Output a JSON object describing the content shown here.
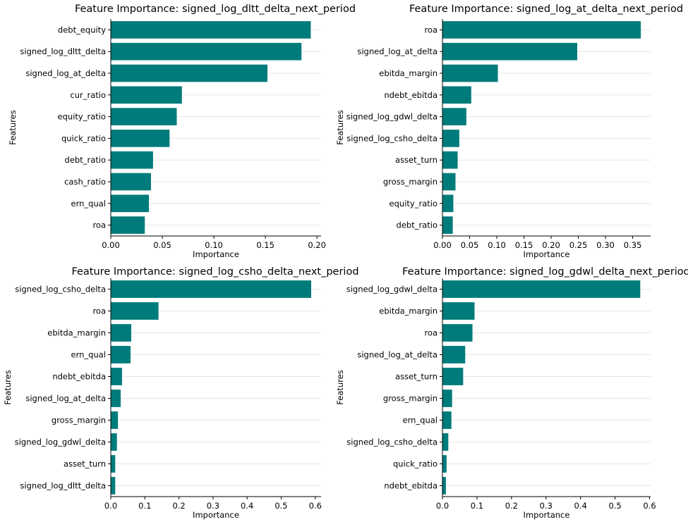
{
  "style": {
    "bar_color": "#007b7b",
    "grid_color": "#e6e6e6",
    "axis_color": "#000000"
  },
  "chart_data": [
    {
      "type": "bar",
      "orientation": "horizontal",
      "title": "Feature Importance: signed_log_dltt_delta_next_period",
      "xlabel": "Importance",
      "ylabel": "Features",
      "categories": [
        "debt_equity",
        "signed_log_dltt_delta",
        "signed_log_at_delta",
        "cur_ratio",
        "equity_ratio",
        "quick_ratio",
        "debt_ratio",
        "cash_ratio",
        "ern_qual",
        "roa"
      ],
      "values": [
        0.194,
        0.185,
        0.152,
        0.069,
        0.064,
        0.057,
        0.041,
        0.039,
        0.037,
        0.033
      ],
      "xlim": [
        0,
        0.204
      ],
      "xticks": [
        0,
        0.05,
        0.1,
        0.15,
        0.2
      ],
      "xtick_labels": [
        "0.00",
        "0.05",
        "0.10",
        "0.15",
        "0.20"
      ],
      "grid": "y"
    },
    {
      "type": "bar",
      "orientation": "horizontal",
      "title": "Feature Importance: signed_log_at_delta_next_period",
      "xlabel": "Importance",
      "ylabel": "Features",
      "categories": [
        "roa",
        "signed_log_at_delta",
        "ebitda_margin",
        "ndebt_ebitda",
        "signed_log_gdwl_delta",
        "signed_log_csho_delta",
        "asset_turn",
        "gross_margin",
        "equity_ratio",
        "debt_ratio"
      ],
      "values": [
        0.365,
        0.248,
        0.102,
        0.053,
        0.044,
        0.031,
        0.028,
        0.024,
        0.02,
        0.019
      ],
      "xlim": [
        0,
        0.383
      ],
      "xticks": [
        0,
        0.05,
        0.1,
        0.15,
        0.2,
        0.25,
        0.3,
        0.35
      ],
      "xtick_labels": [
        "0.00",
        "0.05",
        "0.10",
        "0.15",
        "0.20",
        "0.25",
        "0.30",
        "0.35"
      ],
      "grid": "y"
    },
    {
      "type": "bar",
      "orientation": "horizontal",
      "title": "Feature Importance: signed_log_csho_delta_next_period",
      "xlabel": "Importance",
      "ylabel": "Features",
      "categories": [
        "signed_log_csho_delta",
        "roa",
        "ebitda_margin",
        "ern_qual",
        "ndebt_ebitda",
        "signed_log_at_delta",
        "gross_margin",
        "signed_log_gdwl_delta",
        "asset_turn",
        "signed_log_dltt_delta"
      ],
      "values": [
        0.588,
        0.14,
        0.06,
        0.058,
        0.033,
        0.029,
        0.021,
        0.018,
        0.013,
        0.013
      ],
      "xlim": [
        0,
        0.617
      ],
      "xticks": [
        0,
        0.1,
        0.2,
        0.3,
        0.4,
        0.5,
        0.6
      ],
      "xtick_labels": [
        "0.0",
        "0.1",
        "0.2",
        "0.3",
        "0.4",
        "0.5",
        "0.6"
      ],
      "grid": "y"
    },
    {
      "type": "bar",
      "orientation": "horizontal",
      "title": "Feature Importance: signed_log_gdwl_delta_next_period",
      "xlabel": "Importance",
      "ylabel": "Features",
      "categories": [
        "signed_log_gdwl_delta",
        "ebitda_margin",
        "roa",
        "signed_log_at_delta",
        "asset_turn",
        "gross_margin",
        "ern_qual",
        "signed_log_csho_delta",
        "quick_ratio",
        "ndebt_ebitda"
      ],
      "values": [
        0.573,
        0.093,
        0.087,
        0.066,
        0.06,
        0.028,
        0.026,
        0.017,
        0.012,
        0.01
      ],
      "xlim": [
        0,
        0.603
      ],
      "xticks": [
        0,
        0.1,
        0.2,
        0.3,
        0.4,
        0.5,
        0.6
      ],
      "xtick_labels": [
        "0.0",
        "0.1",
        "0.2",
        "0.3",
        "0.4",
        "0.5",
        "0.6"
      ],
      "grid": "y"
    }
  ]
}
